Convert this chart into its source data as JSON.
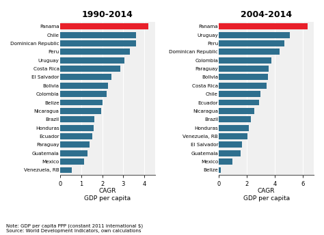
{
  "period1": {
    "title": "1990-2014",
    "countries": [
      "Panama",
      "Chile",
      "Dominican Republic",
      "Peru",
      "Uruguay",
      "Costa Rica",
      "El Salvador",
      "Bolivia",
      "Colombia",
      "Belize",
      "Nicaragua",
      "Brazil",
      "Honduras",
      "Ecuador",
      "Paraguay",
      "Guatemala",
      "Mexico",
      "Venezuela, RB"
    ],
    "values": [
      4.2,
      3.6,
      3.6,
      3.3,
      3.05,
      2.85,
      2.42,
      2.28,
      2.22,
      2.0,
      1.95,
      1.62,
      1.58,
      1.52,
      1.38,
      1.3,
      1.15,
      0.55
    ],
    "colors": [
      "#e8202a",
      "#2e6f8e",
      "#2e6f8e",
      "#2e6f8e",
      "#2e6f8e",
      "#2e6f8e",
      "#2e6f8e",
      "#2e6f8e",
      "#2e6f8e",
      "#2e6f8e",
      "#2e6f8e",
      "#2e6f8e",
      "#2e6f8e",
      "#2e6f8e",
      "#2e6f8e",
      "#2e6f8e",
      "#2e6f8e",
      "#2e6f8e"
    ],
    "xlim": [
      0,
      4.5
    ],
    "xticks": [
      0,
      1,
      2,
      3,
      4
    ],
    "xlabel": "CAGR\nGDP per capita"
  },
  "period2": {
    "title": "2004-2014",
    "countries": [
      "Panama",
      "Uruguay",
      "Peru",
      "Dominican Republic",
      "Colombia",
      "Paraguay",
      "Bolivia",
      "Costa Rica",
      "Chile",
      "Ecuador",
      "Nicaragua",
      "Brazil",
      "Honduras",
      "Venezuela, RB",
      "El Salvador",
      "Guatemala",
      "Mexico",
      "Belize"
    ],
    "values": [
      6.35,
      5.1,
      4.7,
      4.35,
      3.75,
      3.55,
      3.5,
      3.42,
      2.95,
      2.85,
      2.55,
      2.28,
      2.12,
      2.05,
      1.65,
      1.55,
      0.95,
      0.12
    ],
    "colors": [
      "#e8202a",
      "#2e6f8e",
      "#2e6f8e",
      "#2e6f8e",
      "#2e6f8e",
      "#2e6f8e",
      "#2e6f8e",
      "#2e6f8e",
      "#2e6f8e",
      "#2e6f8e",
      "#2e6f8e",
      "#2e6f8e",
      "#2e6f8e",
      "#2e6f8e",
      "#2e6f8e",
      "#2e6f8e",
      "#2e6f8e",
      "#2e6f8e"
    ],
    "xlim": [
      0,
      6.8
    ],
    "xticks": [
      0,
      2,
      4,
      6
    ],
    "xlabel": "CAGR\nGDP per capita"
  },
  "note": "Note: GDP per capita PPP (constant 2011 international $)\nSource: World Development Indicators, own calculations",
  "bar_height": 0.72,
  "background_color": "#ffffff",
  "plot_bg_color": "#f0f0f0",
  "bar_color_main": "#2e6f8e",
  "bar_color_highlight": "#e8202a",
  "grid_color": "#ffffff"
}
